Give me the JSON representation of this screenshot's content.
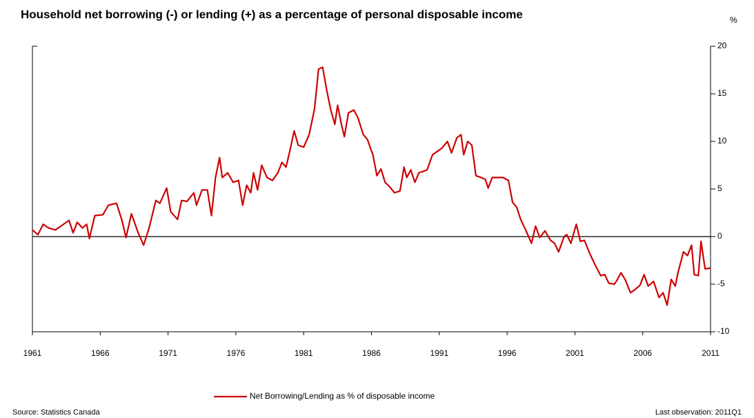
{
  "chart_data": {
    "type": "line",
    "title": "Household net borrowing (-) or lending (+) as a percentage of personal disposable income",
    "y_unit": "%",
    "source": "Source: Statistics Canada",
    "note": "Last observation: 2011Q1",
    "xlim": [
      1961,
      2011
    ],
    "xticks": [
      1961,
      1966,
      1971,
      1976,
      1981,
      1986,
      1991,
      1996,
      2001,
      2006,
      2011
    ],
    "ylim": [
      -10,
      20
    ],
    "yticks": [
      -10,
      -5,
      0,
      5,
      10,
      15,
      20
    ],
    "y_axis_side": "right",
    "zero_line": true,
    "grid": false,
    "legend": "bottom",
    "x": [
      1961.0,
      1961.4,
      1961.8,
      1962.2,
      1962.7,
      1963.2,
      1963.7,
      1964.0,
      1964.3,
      1964.7,
      1965.0,
      1965.2,
      1965.6,
      1966.2,
      1966.6,
      1967.2,
      1967.6,
      1967.9,
      1968.3,
      1968.8,
      1969.2,
      1969.6,
      1970.1,
      1970.4,
      1970.9,
      1971.2,
      1971.7,
      1972.0,
      1972.4,
      1972.9,
      1973.1,
      1973.5,
      1973.9,
      1974.2,
      1974.5,
      1974.8,
      1975.0,
      1975.4,
      1975.8,
      1976.2,
      1976.5,
      1976.8,
      1977.1,
      1977.3,
      1977.6,
      1977.9,
      1978.3,
      1978.7,
      1979.1,
      1979.4,
      1979.7,
      1980.0,
      1980.3,
      1980.6,
      1981.0,
      1981.4,
      1981.8,
      1982.1,
      1982.4,
      1982.7,
      1983.0,
      1983.3,
      1983.5,
      1983.8,
      1984.0,
      1984.3,
      1984.7,
      1985.0,
      1985.4,
      1985.7,
      1986.1,
      1986.4,
      1986.7,
      1987.0,
      1987.3,
      1987.7,
      1988.1,
      1988.4,
      1988.6,
      1988.9,
      1989.2,
      1989.5,
      1989.9,
      1990.1,
      1990.5,
      1990.8,
      1991.2,
      1991.6,
      1991.9,
      1992.3,
      1992.6,
      1992.8,
      1993.1,
      1993.4,
      1993.7,
      1994.1,
      1994.4,
      1994.6,
      1994.9,
      1995.2,
      1995.7,
      1996.1,
      1996.4,
      1996.7,
      1997.0,
      1997.4,
      1997.8,
      1998.1,
      1998.4,
      1998.8,
      1999.2,
      1999.5,
      1999.8,
      2000.2,
      2000.4,
      2000.7,
      2001.1,
      2001.4,
      2001.7,
      2002.1,
      2002.5,
      2002.9,
      2003.2,
      2003.5,
      2003.9,
      2004.1,
      2004.4,
      2004.7,
      2005.1,
      2005.4,
      2005.8,
      2006.1,
      2006.4,
      2006.8,
      2007.2,
      2007.5,
      2007.8,
      2008.1,
      2008.4,
      2008.6,
      2009.0,
      2009.3,
      2009.6,
      2009.8,
      2010.1,
      2010.3,
      2010.6,
      2011.0
    ],
    "series": [
      {
        "name": "Net Borrowing/Lending as % of disposable income",
        "color": "#cc0000",
        "values": [
          0.7,
          0.2,
          1.3,
          0.9,
          0.7,
          1.2,
          1.7,
          0.4,
          1.5,
          0.9,
          1.3,
          -0.2,
          2.2,
          2.3,
          3.3,
          3.5,
          1.7,
          -0.1,
          2.4,
          0.4,
          -0.9,
          0.9,
          3.8,
          3.5,
          5.1,
          2.6,
          1.8,
          3.8,
          3.7,
          4.6,
          3.3,
          4.9,
          4.9,
          2.2,
          6.2,
          8.3,
          6.2,
          6.7,
          5.7,
          5.9,
          3.3,
          5.4,
          4.6,
          6.7,
          4.9,
          7.5,
          6.2,
          5.9,
          6.7,
          7.8,
          7.3,
          9.1,
          11.1,
          9.6,
          9.4,
          10.7,
          13.4,
          17.6,
          17.8,
          15.4,
          13.3,
          11.8,
          13.8,
          11.7,
          10.5,
          13.0,
          13.3,
          12.5,
          10.7,
          10.2,
          8.6,
          6.4,
          7.1,
          5.7,
          5.3,
          4.6,
          4.8,
          7.3,
          6.2,
          7.0,
          5.7,
          6.7,
          6.9,
          7.0,
          8.6,
          8.9,
          9.3,
          10.0,
          8.8,
          10.4,
          10.7,
          8.6,
          10.0,
          9.6,
          6.4,
          6.2,
          6.0,
          5.1,
          6.2,
          6.2,
          6.2,
          5.9,
          3.6,
          3.1,
          1.8,
          0.6,
          -0.7,
          1.1,
          -0.1,
          0.6,
          -0.4,
          -0.7,
          -1.6,
          0.0,
          0.2,
          -0.7,
          1.3,
          -0.5,
          -0.4,
          -1.8,
          -3.0,
          -4.1,
          -4.0,
          -4.9,
          -5.0,
          -4.6,
          -3.8,
          -4.5,
          -5.9,
          -5.6,
          -5.1,
          -4.0,
          -5.2,
          -4.7,
          -6.4,
          -5.9,
          -7.2,
          -4.5,
          -5.2,
          -3.8,
          -1.6,
          -2.0,
          -0.9,
          -4.0,
          -4.1,
          -0.5,
          -3.4,
          -3.3
        ]
      }
    ]
  }
}
